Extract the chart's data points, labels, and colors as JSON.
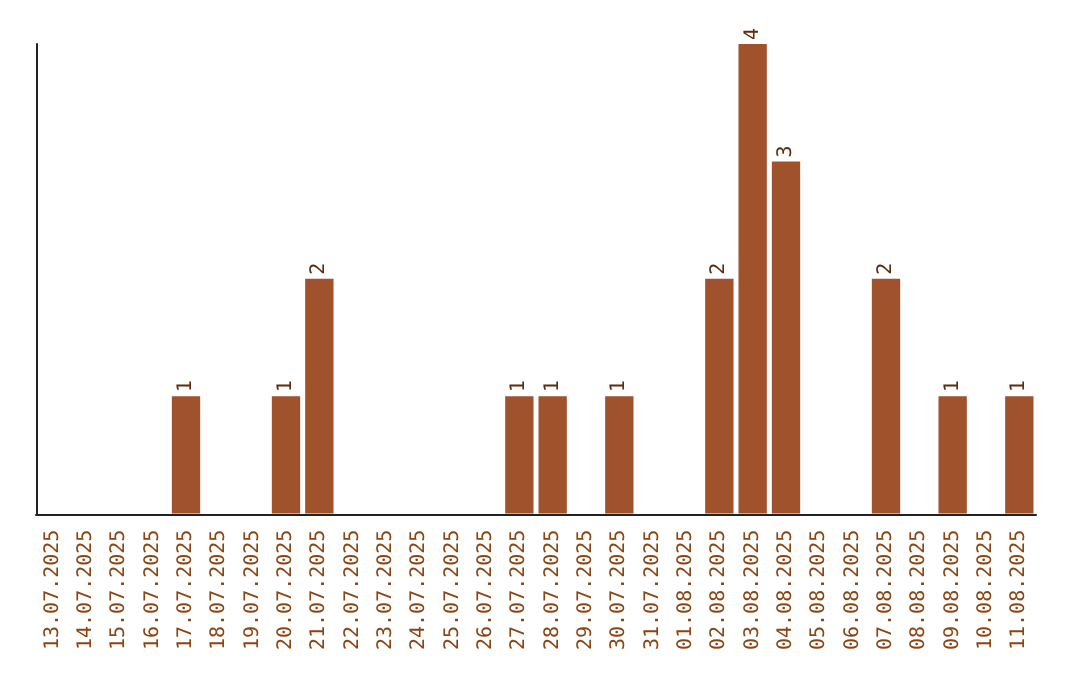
{
  "chart_data": {
    "type": "bar",
    "categories": [
      "13.07.2025",
      "14.07.2025",
      "15.07.2025",
      "16.07.2025",
      "17.07.2025",
      "18.07.2025",
      "19.07.2025",
      "20.07.2025",
      "21.07.2025",
      "22.07.2025",
      "23.07.2025",
      "24.07.2025",
      "25.07.2025",
      "26.07.2025",
      "27.07.2025",
      "28.07.2025",
      "29.07.2025",
      "30.07.2025",
      "31.07.2025",
      "01.08.2025",
      "02.08.2025",
      "03.08.2025",
      "04.08.2025",
      "05.08.2025",
      "06.08.2025",
      "07.08.2025",
      "08.08.2025",
      "09.08.2025",
      "10.08.2025",
      "11.08.2025"
    ],
    "values": [
      0,
      0,
      0,
      0,
      1,
      0,
      0,
      1,
      2,
      0,
      0,
      0,
      0,
      0,
      1,
      1,
      0,
      1,
      0,
      0,
      2,
      4,
      3,
      0,
      0,
      2,
      0,
      1,
      0,
      1
    ],
    "value_labels": [
      null,
      null,
      null,
      null,
      "1",
      null,
      null,
      "1",
      "2",
      null,
      null,
      null,
      null,
      null,
      "1",
      "1",
      null,
      "1",
      null,
      null,
      "2",
      "4",
      "3",
      null,
      null,
      "2",
      null,
      "1",
      null,
      "1"
    ],
    "color": "#a0522d",
    "tick_labels": "x"
  }
}
